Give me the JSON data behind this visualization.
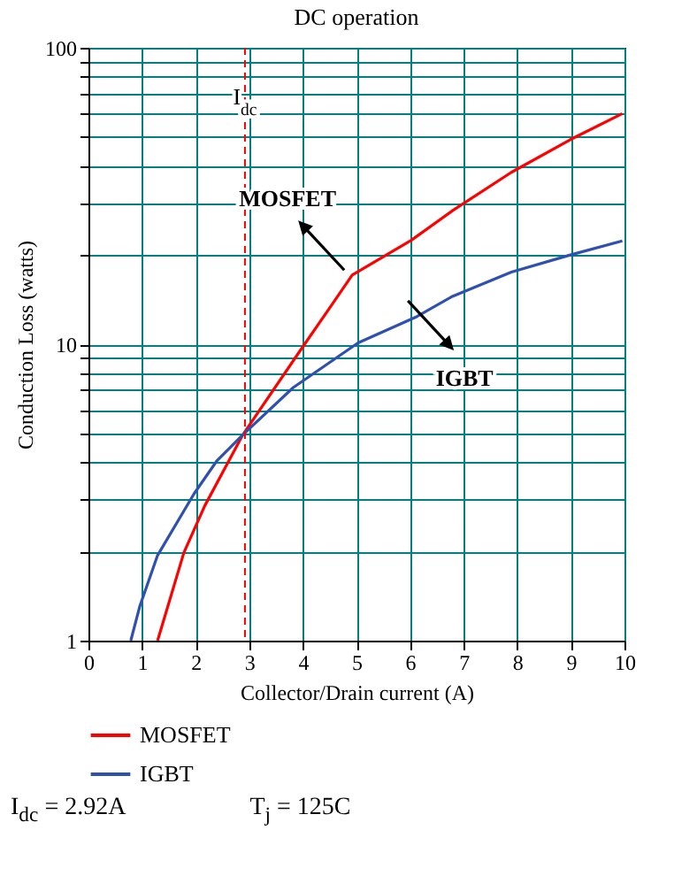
{
  "chart_data": {
    "type": "line",
    "title": "DC operation",
    "xlabel": "Collector/Drain current (A)",
    "ylabel": "Conduction Loss (watts)",
    "series": [
      {
        "name": "MOSFET",
        "color": "#ff0000",
        "x": [
          1.29,
          1.78,
          2.17,
          2.88,
          3.93,
          4.53,
          4.92,
          6.02,
          6.79,
          7.89,
          8.99,
          9.96
        ],
        "values": [
          1,
          1.98,
          2.85,
          4.95,
          9.4,
          13.5,
          17.1,
          22.4,
          28.2,
          38,
          49,
          60
        ]
      },
      {
        "name": "IGBT",
        "color": "#3050b0",
        "x": [
          0.79,
          0.96,
          1.29,
          1.97,
          2.39,
          2.88,
          3.82,
          5.03,
          6.13,
          6.79,
          7.89,
          8.99,
          9.96
        ],
        "values": [
          1,
          1.31,
          1.94,
          3.13,
          4.03,
          4.95,
          7.14,
          10.1,
          12.4,
          14.5,
          17.5,
          20,
          22.3
        ]
      }
    ],
    "xlim": [
      0,
      10
    ],
    "xticks": [
      0,
      1,
      2,
      3,
      4,
      5,
      6,
      7,
      8,
      9,
      10
    ],
    "ylim": [
      1,
      100
    ],
    "log": true,
    "yticks": [
      1,
      {
        "value": 2,
        "label": null
      },
      {
        "value": 3,
        "label": null
      },
      {
        "value": 4,
        "label": null
      },
      {
        "value": 5,
        "label": null
      },
      {
        "value": 6,
        "label": null
      },
      {
        "value": 7,
        "label": null
      },
      {
        "value": 8,
        "label": null
      },
      {
        "value": 9,
        "label": null
      },
      10,
      {
        "value": 20,
        "label": null
      },
      {
        "value": 30,
        "label": null
      },
      {
        "value": 40,
        "label": null
      },
      {
        "value": 50,
        "label": null
      },
      {
        "value": 60,
        "label": null
      },
      {
        "value": 70,
        "label": null
      },
      {
        "value": 80,
        "label": null
      },
      {
        "value": 90,
        "label": null
      },
      100
    ],
    "grid": true,
    "legend": "bottom",
    "ref_lines": [
      {
        "axis": "x",
        "value": 2.92,
        "label": "I$_{dc}$",
        "color": "#ff0000",
        "line_style": "dashed"
      }
    ],
    "annotations": [
      {
        "text": "MOSFET",
        "x": 4.97,
        "y": 17.3
      },
      {
        "text": "IGBT",
        "x": 6.29,
        "y": 12.9
      },
      "I$_{dc}$ = 2.92A",
      "T$_{j}$ = 125C"
    ]
  }
}
